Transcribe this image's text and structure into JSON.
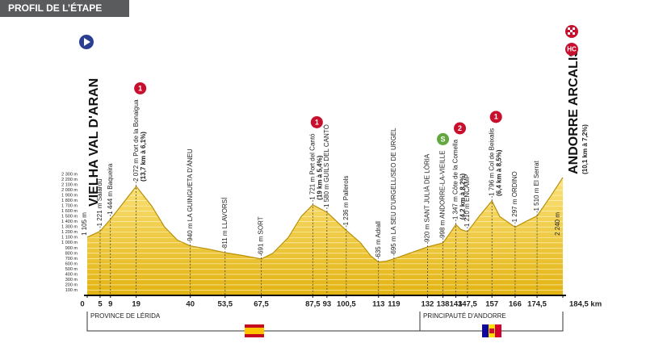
{
  "header": {
    "title": "PROFIL DE L’ÉTAPE"
  },
  "chart_data": {
    "type": "area",
    "x": [
      0,
      5,
      9,
      19,
      25,
      30,
      35,
      40,
      47,
      53.5,
      60,
      67.5,
      72,
      78,
      83,
      87.5,
      93,
      100.5,
      106,
      110,
      113,
      116,
      119,
      125,
      132,
      138,
      141,
      143,
      145,
      147.5,
      152,
      157,
      160,
      166,
      170,
      174.5,
      180,
      184.5
    ],
    "values": [
      1105,
      1221,
      1444,
      2072,
      1700,
      1300,
      1050,
      940,
      880,
      811,
      760,
      691,
      800,
      1100,
      1500,
      1721,
      1580,
      1236,
      1000,
      750,
      635,
      650,
      695,
      800,
      920,
      998,
      1200,
      1347,
      1250,
      1210,
      1500,
      1796,
      1500,
      1297,
      1400,
      1510,
      1900,
      2240
    ],
    "color": "#f3c81e",
    "xlim": [
      0,
      184.5
    ],
    "ylim": [
      0,
      2300
    ],
    "xticks": [
      0,
      5,
      9,
      19,
      40,
      {
        "value": 53.5,
        "label": "53,5"
      },
      {
        "value": 67.5,
        "label": "67,5"
      },
      {
        "value": 87.5,
        "label": "87,5"
      },
      93,
      {
        "value": 100.5,
        "label": "100,5"
      },
      113,
      119,
      132,
      138,
      143,
      {
        "value": 147.5,
        "label": "147,5"
      },
      157,
      166,
      {
        "value": 174.5,
        "label": "174,5"
      },
      {
        "value": 184.5,
        "label": "184,5 km"
      }
    ],
    "yticks": [
      {
        "value": 100,
        "label": "100 m"
      },
      {
        "value": 200,
        "label": "200 m"
      },
      {
        "value": 300,
        "label": "300 m"
      },
      {
        "value": 400,
        "label": "400 m"
      },
      {
        "value": 500,
        "label": "500 m"
      },
      {
        "value": 600,
        "label": "600 m"
      },
      {
        "value": 700,
        "label": "700 m"
      },
      {
        "value": 800,
        "label": "800 m"
      },
      {
        "value": 900,
        "label": "900 m"
      },
      {
        "value": 1000,
        "label": "1 000 m"
      },
      {
        "value": 1100,
        "label": "1 100 m"
      },
      {
        "value": 1200,
        "label": "1 200 m"
      },
      {
        "value": 1300,
        "label": "1 300 m"
      },
      {
        "value": 1400,
        "label": "1 400 m"
      },
      {
        "value": 1500,
        "label": "1 500 m"
      },
      {
        "value": 1600,
        "label": "1 600 m"
      },
      {
        "value": 1700,
        "label": "1 700 m"
      },
      {
        "value": 1800,
        "label": "1 800 m"
      },
      {
        "value": 1900,
        "label": "1 900 m"
      },
      {
        "value": 2000,
        "label": "2 000 m"
      },
      {
        "value": 2100,
        "label": "2 100 m"
      },
      {
        "value": 2200,
        "label": "2 200 m"
      },
      {
        "value": 2300,
        "label": "2 300 m"
      }
    ],
    "grid": true,
    "start": {
      "km": 0,
      "altitude": "1 105 m",
      "name": "VIELHA VAL D'ARAN"
    },
    "finish": {
      "km": 184.5,
      "altitude": "2 240 m",
      "name": "ANDORRE ARCALIS",
      "climb": "(10,1 km à 7,2%)",
      "category": "HC"
    },
    "waypoints": [
      {
        "km": 5,
        "text": "1 221 m  Salardú"
      },
      {
        "km": 9,
        "text": "1 444 m  Baqueira"
      },
      {
        "km": 19,
        "text": "2 072 m  Port de la Bonaigua",
        "climb": "(13,7 km à 6,1%)",
        "category": "1"
      },
      {
        "km": 40,
        "text": "940 m  LA GUINGUETA D'ÀNEU"
      },
      {
        "km": 53.5,
        "text": "811 m  LLAVORSÍ"
      },
      {
        "km": 67.5,
        "text": "691 m  SORT"
      },
      {
        "km": 87.5,
        "text": "1 721 m  Port del Cantó",
        "climb": "(19 km à 5,4%)",
        "category": "1"
      },
      {
        "km": 93,
        "text": "1 580 m  GUILS DEL CANTÓ"
      },
      {
        "km": 100.5,
        "text": "1 236 m  Pallerols"
      },
      {
        "km": 113,
        "text": "635 m  Adrall"
      },
      {
        "km": 119,
        "text": "695 m  LA SEU D'URGELL/SEO DE URGEL"
      },
      {
        "km": 132,
        "text": "920 m  SANT JULIÀ DE LÒRIA"
      },
      {
        "km": 138,
        "text": "998 m  ANDORRE-LA-VIEILLE",
        "category": "S"
      },
      {
        "km": 143,
        "text": "1 347 m  Côte de la Comella",
        "climb": "(4,2 km à 8,2%)",
        "category": "2"
      },
      {
        "km": 147.5,
        "text": "1 210 m  ENCAMP"
      },
      {
        "km": 157,
        "text": "1 796 m  Col de Beixalis",
        "climb": "(6,4 km à 8,5%)",
        "category": "1"
      },
      {
        "km": 166,
        "text": "1 297 m  ORDINO"
      },
      {
        "km": 174.5,
        "text": "1 510 m  El Serrat"
      }
    ],
    "regions": [
      "PROVINCE DE LÉRIDA",
      "PRINCIPAUTÉ D'ANDORRE"
    ]
  }
}
